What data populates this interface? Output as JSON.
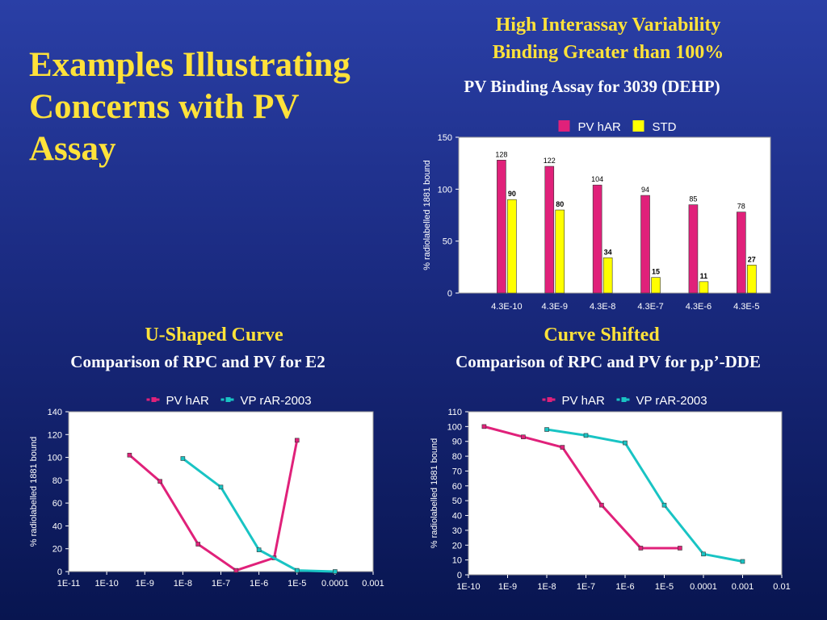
{
  "slide": {
    "title": "Examples Illustrating Concerns with PV Assay"
  },
  "top": {
    "heading_line1": "High Interassay Variability",
    "heading_line2": "Binding Greater than 100%",
    "subtitle": "PV Binding Assay for 3039 (DEHP)"
  },
  "bottom_left": {
    "heading": "U-Shaped Curve",
    "subtitle": "Comparison of RPC and PV for E2"
  },
  "bottom_right": {
    "heading": "Curve Shifted",
    "subtitle": "Comparison of RPC and PV for p,p’-DDE"
  },
  "chart_data": [
    {
      "type": "bar",
      "title": "PV Binding Assay for 3039 (DEHP)",
      "categories": [
        "4.3E-10",
        "4.3E-9",
        "4.3E-8",
        "4.3E-7",
        "4.3E-6",
        "4.3E-5"
      ],
      "series": [
        {
          "name": "PV hAR",
          "values": [
            128,
            122,
            104,
            94,
            85,
            78
          ],
          "color": "#e0217a"
        },
        {
          "name": "STD",
          "values": [
            90,
            80,
            34,
            15,
            11,
            27
          ],
          "color": "#ffff00"
        }
      ],
      "ylabel": "% radiolabelled 1881 bound",
      "ylim": [
        0,
        150
      ],
      "yticks": [
        0,
        50,
        100,
        150
      ],
      "legend": "top"
    },
    {
      "type": "line",
      "xscale": "log",
      "xticks": [
        "1E-11",
        "1E-10",
        "1E-9",
        "1E-8",
        "1E-7",
        "1E-6",
        "1E-5",
        "0.0001",
        "0.001"
      ],
      "xlim_exp": [
        -11,
        -3
      ],
      "series": [
        {
          "name": "PV hAR",
          "color": "#e0217a",
          "x_exp": [
            -9.4,
            -8.6,
            -7.6,
            -6.6,
            -5.6,
            -5.0
          ],
          "y": [
            102,
            79,
            24,
            1,
            12,
            115
          ]
        },
        {
          "name": "VP rAR-2003",
          "color": "#19c4c4",
          "x_exp": [
            -8.0,
            -7.0,
            -6.0,
            -5.0,
            -4.0
          ],
          "y": [
            99,
            74,
            19,
            1,
            0
          ]
        }
      ],
      "ylabel": "% radiolabelled 1881 bound",
      "ylim": [
        0,
        140
      ],
      "yticks": [
        0,
        20,
        40,
        60,
        80,
        100,
        120,
        140
      ],
      "legend": "top"
    },
    {
      "type": "line",
      "xscale": "log",
      "xticks": [
        "1E-10",
        "1E-9",
        "1E-8",
        "1E-7",
        "1E-6",
        "1E-5",
        "0.0001",
        "0.001",
        "0.01"
      ],
      "xlim_exp": [
        -10,
        -2
      ],
      "series": [
        {
          "name": "PV hAR",
          "color": "#e0217a",
          "x_exp": [
            -9.6,
            -8.6,
            -7.6,
            -6.6,
            -5.6,
            -4.6
          ],
          "y": [
            100,
            93,
            86,
            47,
            18,
            18
          ]
        },
        {
          "name": "VP rAR-2003",
          "color": "#19c4c4",
          "x_exp": [
            -8.0,
            -7.0,
            -6.0,
            -5.0,
            -4.0,
            -3.0
          ],
          "y": [
            98,
            94,
            89,
            47,
            14,
            9
          ]
        }
      ],
      "ylabel": "% radiolabelled 1881 bound",
      "ylim": [
        0,
        110
      ],
      "yticks": [
        0,
        10,
        20,
        30,
        40,
        50,
        60,
        70,
        80,
        90,
        100,
        110
      ],
      "legend": "top"
    }
  ]
}
